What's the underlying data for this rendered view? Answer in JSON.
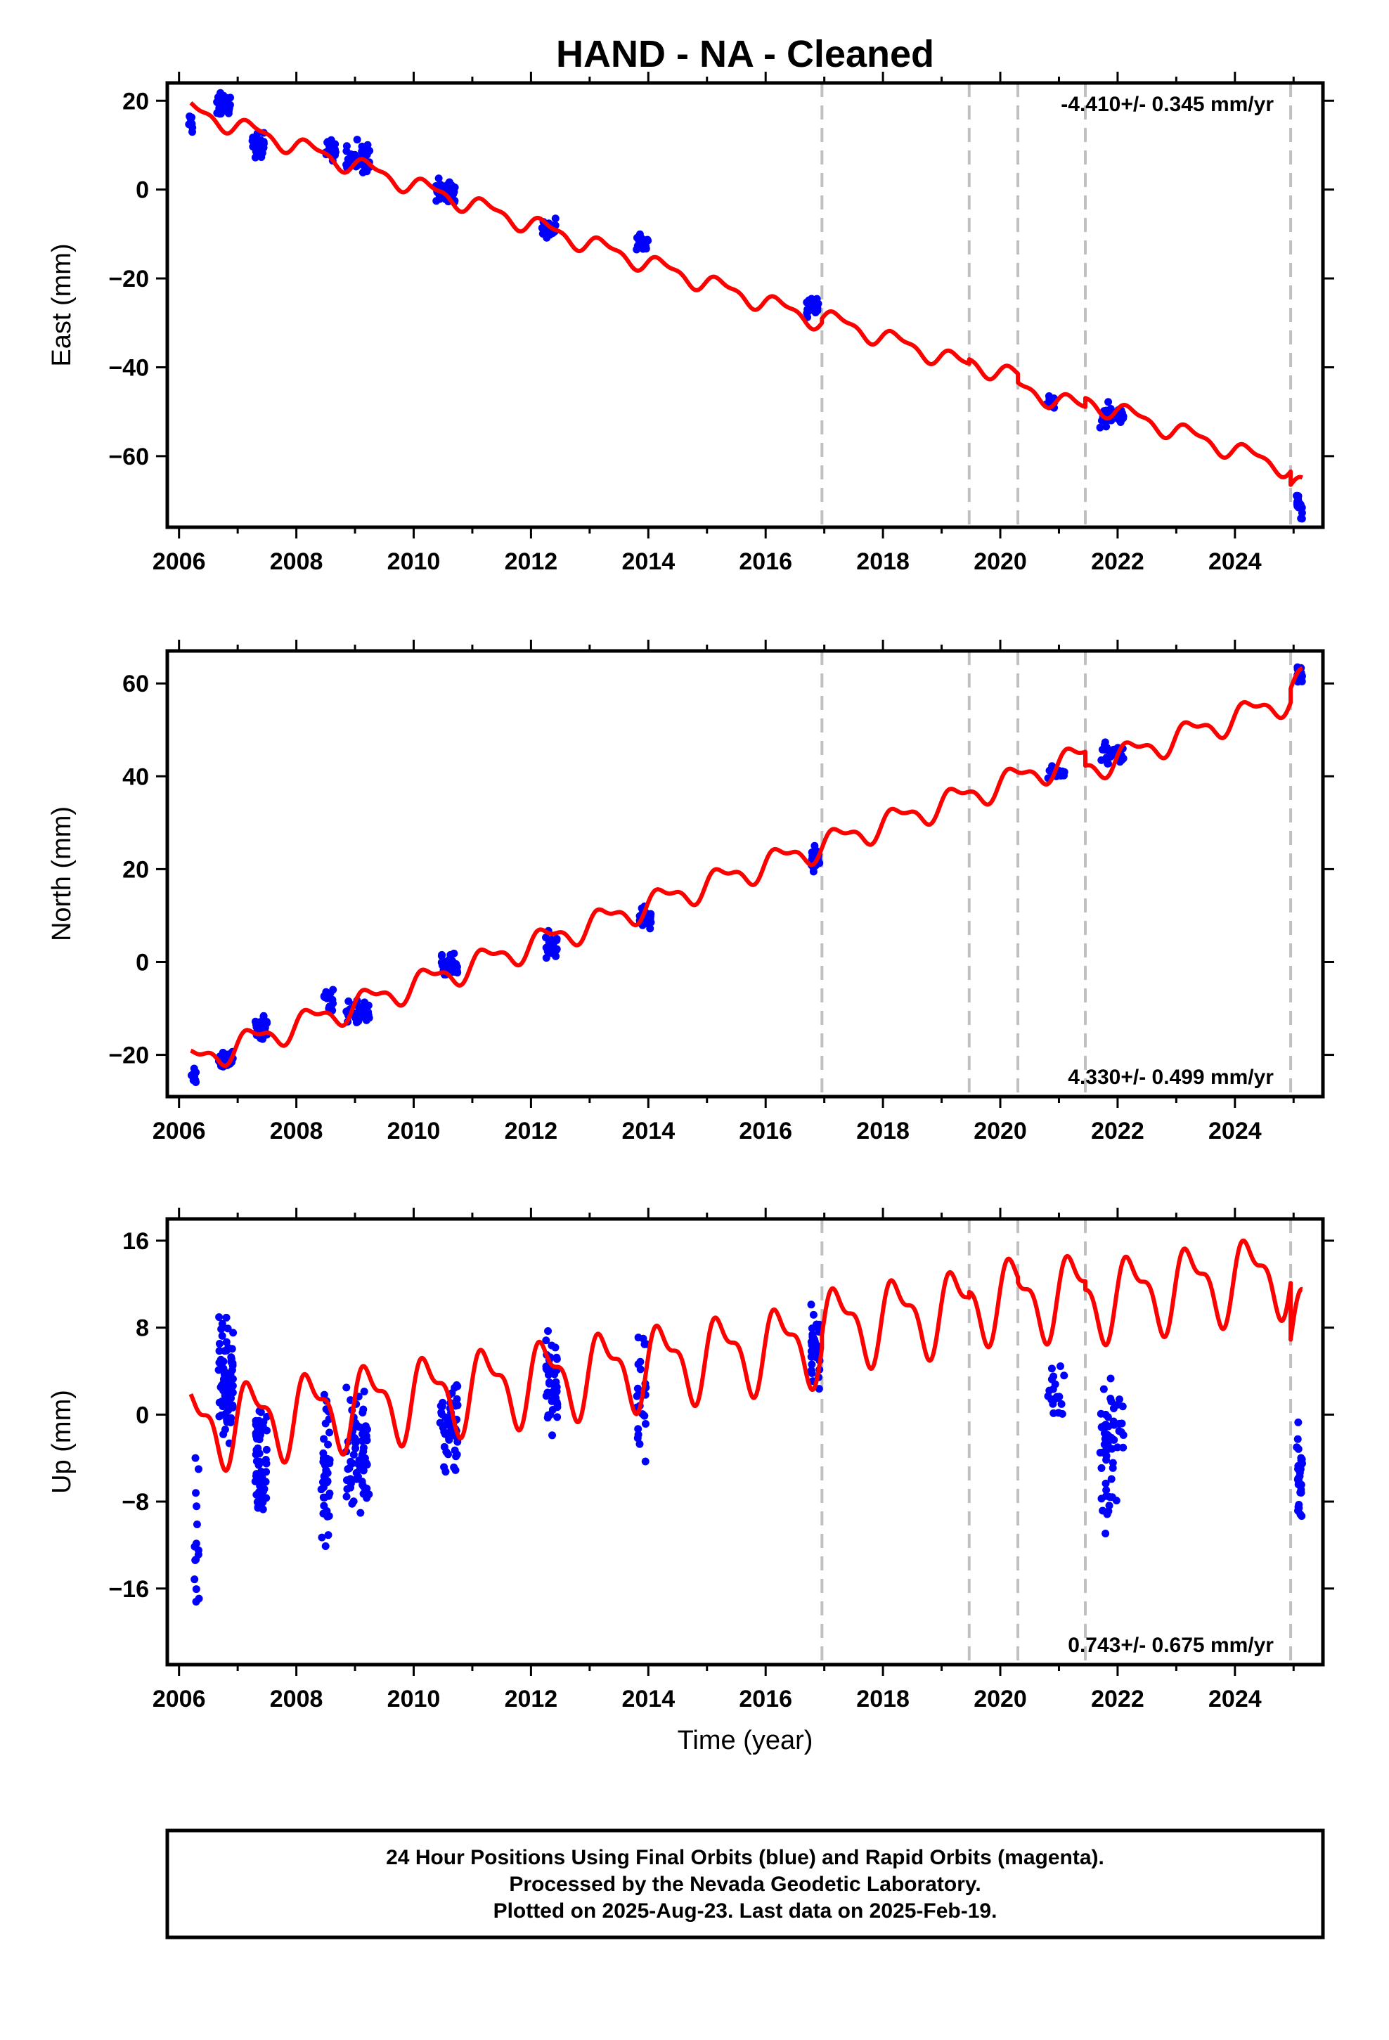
{
  "chart_data": {
    "type": "scatter",
    "title": "HAND  - NA - Cleaned",
    "xlabel": "Time (year)",
    "xlim": [
      2005.8,
      2025.5
    ],
    "x_ticks": [
      2006,
      2008,
      2010,
      2012,
      2014,
      2016,
      2018,
      2020,
      2022,
      2024
    ],
    "grid": false,
    "colors": {
      "data_points": "#0000ff",
      "model_fit": "#ff0000",
      "event_lines": "#c0c0c0",
      "frame": "#000000"
    },
    "event_lines_year": [
      2016.96,
      2019.47,
      2020.3,
      2021.45,
      2024.95
    ],
    "panels": [
      {
        "id": "east",
        "ylabel": "East (mm)",
        "ylim": [
          -76,
          24
        ],
        "y_ticks": [
          20,
          0,
          -20,
          -40,
          -60
        ],
        "rate_label": "-4.410+/- 0.345 mm/yr",
        "rate_position": "top-right",
        "rate_mm_per_yr": -4.41,
        "seasonal_amplitude_mm": 1.8,
        "data_clusters": [
          {
            "t": 2006.2,
            "y": 15,
            "n": 10,
            "tspan": 0.08,
            "spread": 2
          },
          {
            "t": 2006.75,
            "y": 19,
            "n": 40,
            "tspan": 0.25,
            "spread": 2
          },
          {
            "t": 2007.35,
            "y": 10,
            "n": 40,
            "tspan": 0.2,
            "spread": 2
          },
          {
            "t": 2008.6,
            "y": 9,
            "n": 20,
            "tspan": 0.2,
            "spread": 2
          },
          {
            "t": 2009.05,
            "y": 7,
            "n": 40,
            "tspan": 0.4,
            "spread": 3
          },
          {
            "t": 2010.55,
            "y": 0,
            "n": 30,
            "tspan": 0.35,
            "spread": 2
          },
          {
            "t": 2012.3,
            "y": -9,
            "n": 30,
            "tspan": 0.25,
            "spread": 2
          },
          {
            "t": 2013.9,
            "y": -12,
            "n": 20,
            "tspan": 0.2,
            "spread": 1.5
          },
          {
            "t": 2016.8,
            "y": -26,
            "n": 30,
            "tspan": 0.2,
            "spread": 2
          },
          {
            "t": 2020.85,
            "y": -48,
            "n": 15,
            "tspan": 0.15,
            "spread": 1.5
          },
          {
            "t": 2021.9,
            "y": -51,
            "n": 30,
            "tspan": 0.4,
            "spread": 2
          },
          {
            "t": 2025.1,
            "y": -71,
            "n": 20,
            "tspan": 0.1,
            "spread": 2
          }
        ],
        "model_segments": [
          {
            "t0": 2006.2,
            "t1": 2016.96,
            "offset": 17.8
          },
          {
            "t0": 2016.96,
            "t1": 2019.47,
            "offset": 18.8
          },
          {
            "t0": 2019.47,
            "t1": 2020.3,
            "offset": 19.8
          },
          {
            "t0": 2020.3,
            "t1": 2021.45,
            "offset": 17.8
          },
          {
            "t0": 2021.45,
            "t1": 2024.95,
            "offset": 19.8
          },
          {
            "t0": 2024.95,
            "t1": 2025.15,
            "offset": 16.8
          }
        ]
      },
      {
        "id": "north",
        "ylabel": "North (mm)",
        "ylim": [
          -29,
          67
        ],
        "y_ticks": [
          60,
          40,
          20,
          0,
          -20
        ],
        "rate_label": "4.330+/- 0.499 mm/yr",
        "rate_position": "bottom-right",
        "rate_mm_per_yr": 4.33,
        "seasonal_amplitude_mm": 2.5,
        "data_clusters": [
          {
            "t": 2006.25,
            "y": -24,
            "n": 10,
            "tspan": 0.08,
            "spread": 2
          },
          {
            "t": 2006.8,
            "y": -21,
            "n": 40,
            "tspan": 0.25,
            "spread": 1.5
          },
          {
            "t": 2007.4,
            "y": -14,
            "n": 40,
            "tspan": 0.2,
            "spread": 2
          },
          {
            "t": 2008.55,
            "y": -8,
            "n": 20,
            "tspan": 0.15,
            "spread": 2
          },
          {
            "t": 2009.05,
            "y": -11,
            "n": 40,
            "tspan": 0.4,
            "spread": 2
          },
          {
            "t": 2010.6,
            "y": -1,
            "n": 30,
            "tspan": 0.3,
            "spread": 2
          },
          {
            "t": 2012.35,
            "y": 3,
            "n": 30,
            "tspan": 0.2,
            "spread": 2.5
          },
          {
            "t": 2013.95,
            "y": 9,
            "n": 20,
            "tspan": 0.2,
            "spread": 2
          },
          {
            "t": 2016.85,
            "y": 22,
            "n": 25,
            "tspan": 0.15,
            "spread": 2
          },
          {
            "t": 2020.95,
            "y": 41,
            "n": 15,
            "tspan": 0.3,
            "spread": 1.5
          },
          {
            "t": 2021.9,
            "y": 45,
            "n": 30,
            "tspan": 0.4,
            "spread": 2
          },
          {
            "t": 2025.1,
            "y": 62,
            "n": 20,
            "tspan": 0.1,
            "spread": 1.5
          }
        ],
        "model_segments": [
          {
            "t0": 2006.2,
            "t1": 2016.96,
            "offset": -21.5
          },
          {
            "t0": 2016.96,
            "t1": 2019.47,
            "offset": -21.5
          },
          {
            "t0": 2019.47,
            "t1": 2020.3,
            "offset": -21.5
          },
          {
            "t0": 2020.3,
            "t1": 2021.45,
            "offset": -21.5
          },
          {
            "t0": 2021.45,
            "t1": 2024.95,
            "offset": -24.5
          },
          {
            "t0": 2024.95,
            "t1": 2025.15,
            "offset": -21.5
          }
        ]
      },
      {
        "id": "up",
        "ylabel": "Up (mm)",
        "ylim": [
          -23,
          18
        ],
        "y_ticks": [
          16,
          8,
          0,
          -8,
          -16
        ],
        "rate_label": "0.743+/- 0.675 mm/yr",
        "rate_position": "bottom-right",
        "rate_mm_per_yr": 0.743,
        "seasonal_amplitude_mm": 3.2,
        "data_clusters": [
          {
            "t": 2006.3,
            "y": -12,
            "n": 15,
            "tspan": 0.08,
            "spread": 6
          },
          {
            "t": 2006.8,
            "y": 3,
            "n": 80,
            "tspan": 0.25,
            "spread": 4
          },
          {
            "t": 2007.4,
            "y": -4,
            "n": 60,
            "tspan": 0.2,
            "spread": 4
          },
          {
            "t": 2008.5,
            "y": -5,
            "n": 40,
            "tspan": 0.15,
            "spread": 5
          },
          {
            "t": 2009.05,
            "y": -3,
            "n": 70,
            "tspan": 0.4,
            "spread": 5
          },
          {
            "t": 2010.6,
            "y": -1,
            "n": 50,
            "tspan": 0.3,
            "spread": 4
          },
          {
            "t": 2012.35,
            "y": 3,
            "n": 50,
            "tspan": 0.2,
            "spread": 4
          },
          {
            "t": 2013.9,
            "y": 2,
            "n": 25,
            "tspan": 0.2,
            "spread": 5
          },
          {
            "t": 2016.85,
            "y": 6,
            "n": 40,
            "tspan": 0.15,
            "spread": 3
          },
          {
            "t": 2020.95,
            "y": 2,
            "n": 20,
            "tspan": 0.3,
            "spread": 3
          },
          {
            "t": 2021.9,
            "y": -3,
            "n": 60,
            "tspan": 0.4,
            "spread": 5
          },
          {
            "t": 2025.1,
            "y": -6,
            "n": 30,
            "tspan": 0.1,
            "spread": 3
          }
        ],
        "model_segments": [
          {
            "t0": 2006.2,
            "t1": 2016.96,
            "offset": -1.2
          },
          {
            "t0": 2016.96,
            "t1": 2019.47,
            "offset": 0
          },
          {
            "t0": 2019.47,
            "t1": 2020.3,
            "offset": 0.5
          },
          {
            "t0": 2020.3,
            "t1": 2021.45,
            "offset": 0
          },
          {
            "t0": 2021.45,
            "t1": 2024.95,
            "offset": -0.8
          },
          {
            "t0": 2024.95,
            "t1": 2025.15,
            "offset": -6
          }
        ]
      }
    ]
  },
  "footer": {
    "line1": "24 Hour Positions Using Final Orbits (blue) and Rapid Orbits (magenta).",
    "line2": "Processed by the Nevada Geodetic Laboratory.",
    "line3": "Plotted on 2025-Aug-23. Last data on 2025-Feb-19."
  }
}
